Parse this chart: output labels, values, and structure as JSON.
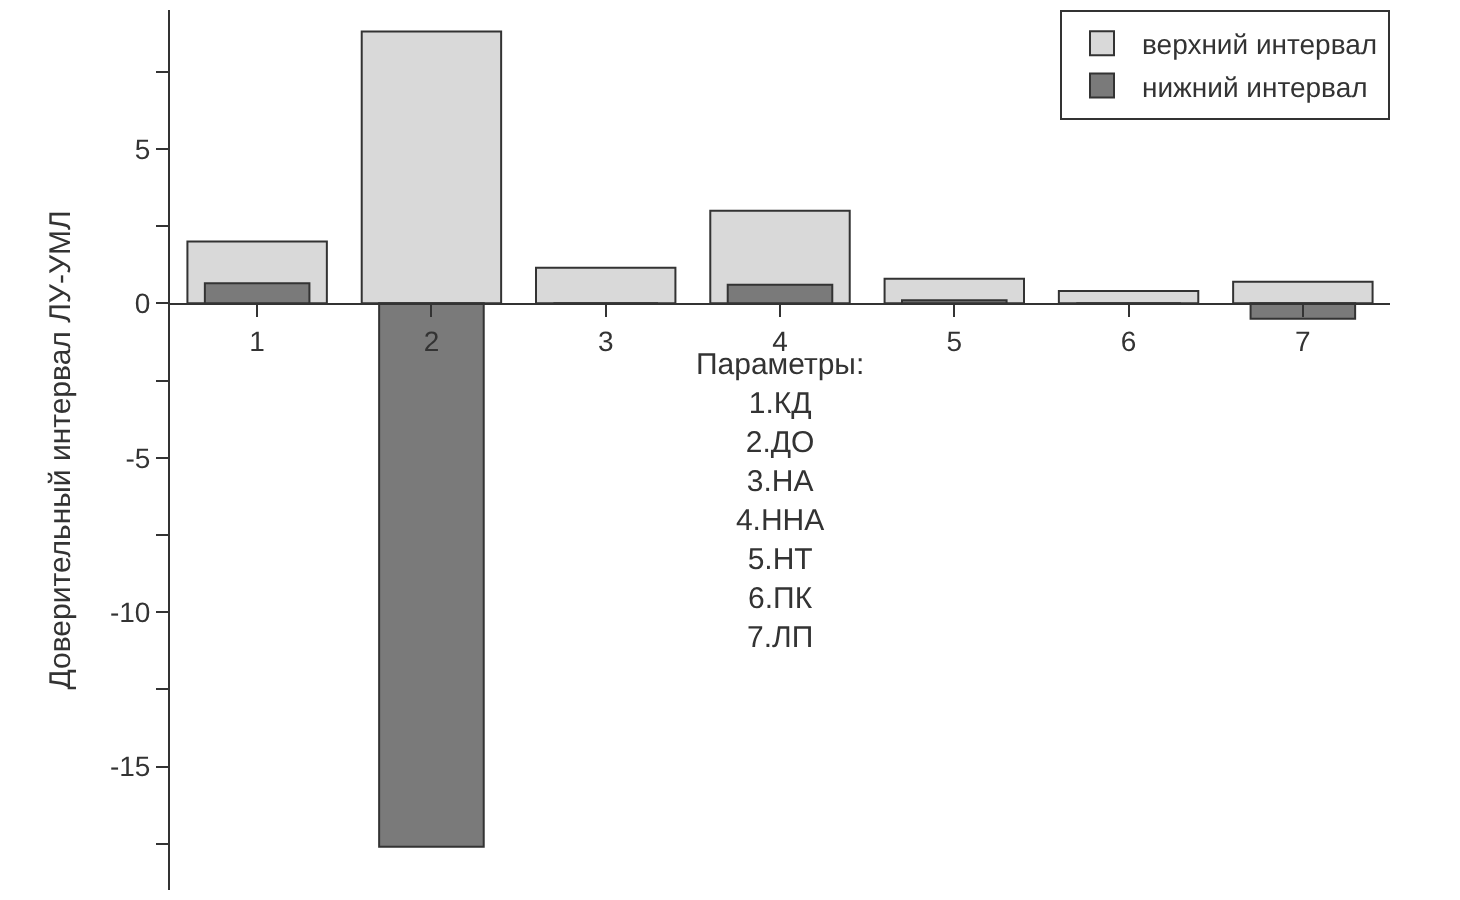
{
  "chart_data": {
    "type": "bar",
    "ylabel": "Доверительный интервал ЛУ-УМЛ",
    "categories": [
      "1",
      "2",
      "3",
      "4",
      "5",
      "6",
      "7"
    ],
    "series": [
      {
        "name": "верхний интервал",
        "color": "#d9d9d9",
        "values": [
          2.0,
          8.8,
          1.15,
          3.0,
          0.8,
          0.4,
          0.7
        ]
      },
      {
        "name": "нижний интервал",
        "color": "#7a7a7a",
        "values": [
          0.65,
          -17.6,
          0,
          0.6,
          0.1,
          0,
          -0.5
        ]
      }
    ],
    "ylim": [
      -19,
      9.5
    ],
    "yticks": [
      {
        "value": -17.5,
        "label": null
      },
      -15,
      {
        "value": -12.5,
        "label": null
      },
      -10,
      {
        "value": -7.5,
        "label": null
      },
      -5,
      {
        "value": -2.5,
        "label": null
      },
      0,
      {
        "value": 2.5,
        "label": null
      },
      5,
      {
        "value": 7.5,
        "label": null
      }
    ],
    "annotations": [
      "Параметры:\n1.КД\n2.ДО\n3.НА\n4.ННА\n5.НТ\n6.ПК\n7.ЛП"
    ],
    "legend": "top right"
  }
}
